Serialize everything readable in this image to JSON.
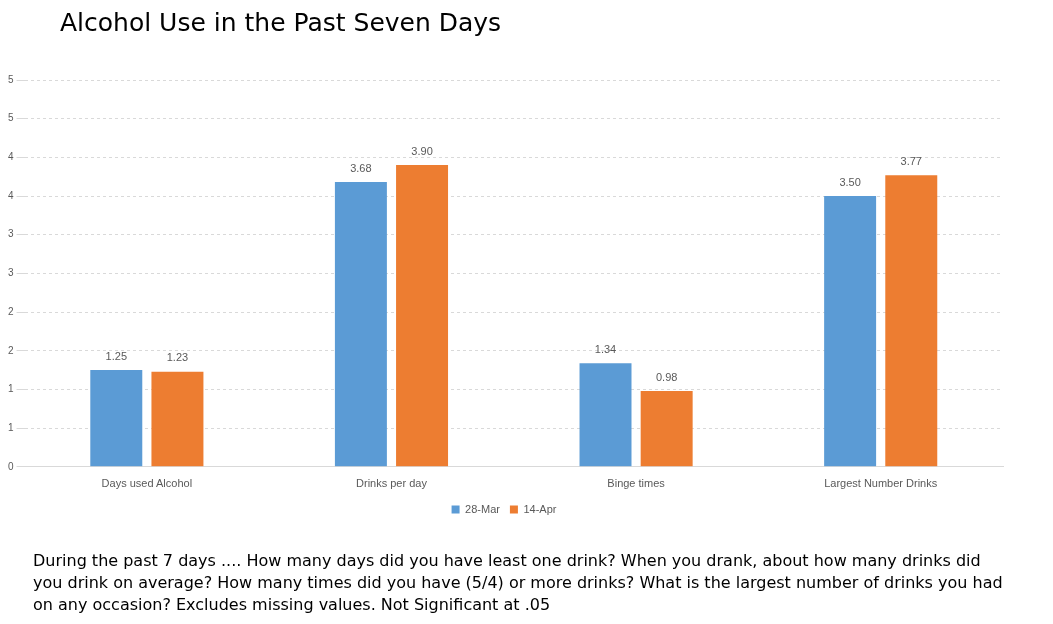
{
  "chart_data": {
    "type": "bar",
    "title": "Alcohol Use in the Past Seven Days",
    "categories": [
      "Days used Alcohol",
      "Drinks per day",
      "Binge times",
      "Largest Number Drinks"
    ],
    "series": [
      {
        "name": "28-Mar",
        "color": "#5b9bd5",
        "values": [
          1.25,
          3.68,
          1.34,
          3.5
        ],
        "value_labels": [
          "1.25",
          "3.68",
          "1.34",
          "3.50"
        ]
      },
      {
        "name": "14-Apr",
        "color": "#ed7d31",
        "values": [
          1.23,
          3.9,
          0.98,
          3.77
        ],
        "value_labels": [
          "1.23",
          "3.90",
          "0.98",
          "3.77"
        ]
      }
    ],
    "ylim": [
      0,
      5
    ],
    "yticks": [
      0,
      {
        "value": 0.5,
        "label": "1"
      },
      1,
      {
        "value": 1.5,
        "label": "2"
      },
      2,
      {
        "value": 2.5,
        "label": "3"
      },
      3,
      {
        "value": 3.5,
        "label": "4"
      },
      4,
      {
        "value": 4.5,
        "label": "5"
      },
      5
    ],
    "grid": "y",
    "legend": "bottom",
    "annotations": [
      "During the past 7 days ....  How many days did you have least one drink?   When you drank, about how many drinks did you drink on average?  How many times did you have (5/4) or more drinks?  What is the largest number of drinks you had on any occasion?          Excludes missing values.   Not Significant at .05"
    ]
  }
}
